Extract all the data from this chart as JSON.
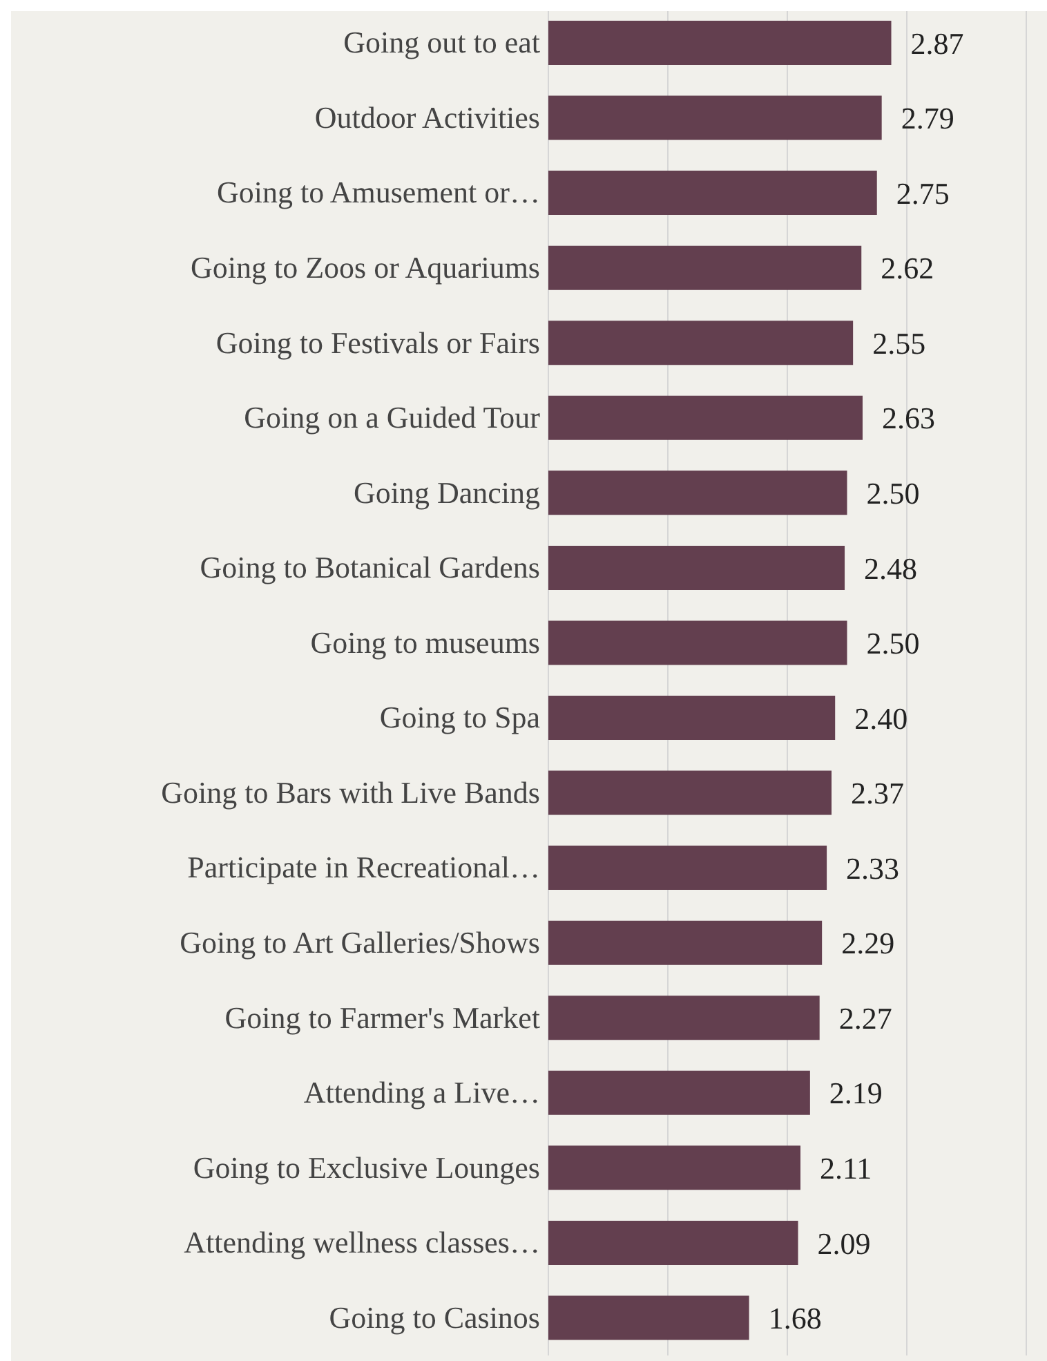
{
  "chart_data": {
    "type": "bar",
    "orientation": "horizontal",
    "categories": [
      "Going out to eat",
      "Outdoor Activities",
      "Going to Amusement or…",
      "Going to Zoos or Aquariums",
      "Going to Festivals or Fairs",
      "Going on a Guided Tour",
      "Going Dancing",
      "Going to Botanical Gardens",
      "Going to museums",
      "Going to Spa",
      "Going to Bars with Live Bands",
      "Participate in Recreational…",
      "Going to Art Galleries/Shows",
      "Going to Farmer's Market",
      "Attending a Live…",
      "Going to Exclusive Lounges",
      "Attending wellness classes…",
      "Going to Casinos"
    ],
    "values": [
      2.87,
      2.79,
      2.75,
      2.62,
      2.55,
      2.63,
      2.5,
      2.48,
      2.5,
      2.4,
      2.37,
      2.33,
      2.29,
      2.27,
      2.19,
      2.11,
      2.09,
      1.68
    ],
    "value_labels": [
      "2.87",
      "2.79",
      "2.75",
      "2.62",
      "2.55",
      "2.63",
      "2.50",
      "2.48",
      "2.50",
      "2.40",
      "2.37",
      "2.33",
      "2.29",
      "2.27",
      "2.19",
      "2.11",
      "2.09",
      "1.68"
    ],
    "color": "#633f4f",
    "xlim": [
      0,
      4
    ],
    "xticks": [
      {
        "value": 0,
        "label": null
      },
      {
        "value": 1,
        "label": null
      },
      {
        "value": 2,
        "label": null
      },
      {
        "value": 3,
        "label": null
      },
      {
        "value": 4,
        "label": null
      }
    ],
    "grid": "x",
    "tick_labels": "y"
  }
}
